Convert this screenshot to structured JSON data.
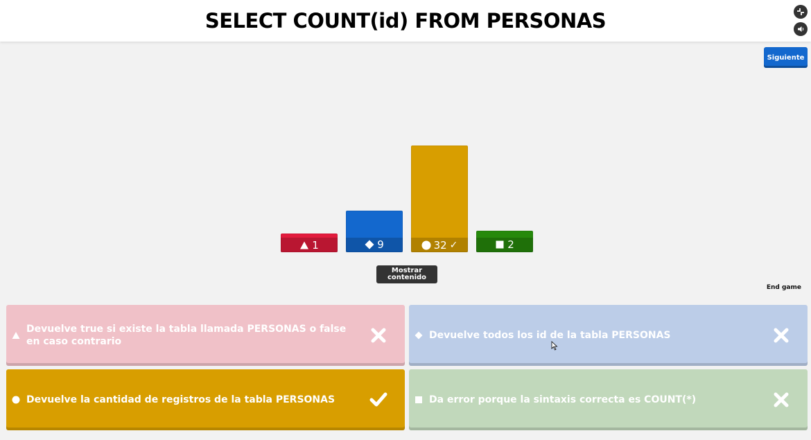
{
  "header": {
    "question": "SELECT COUNT(id) FROM PERSONAS",
    "fullscreen_icon": "fullscreen-icon",
    "sound_icon": "speaker-icon"
  },
  "controls": {
    "next_label": "Siguiente",
    "show_content_label": "Mostrar contenido",
    "end_game_label": "End game"
  },
  "colors": {
    "red": "#e21b3c",
    "blue": "#1368ce",
    "gold": "#d89e00",
    "green": "#26890c",
    "red_faded": "#f0c1c8",
    "blue_faded": "#bccde8",
    "green_faded": "#c1d8bb"
  },
  "chart_data": {
    "type": "bar",
    "categories": [
      "triangle",
      "diamond",
      "circle",
      "square"
    ],
    "values": [
      1,
      9,
      32,
      2
    ],
    "value_labels": [
      "1",
      "9",
      "32",
      "2"
    ],
    "correct": [
      false,
      false,
      true,
      false
    ],
    "colors": [
      "#e21b3c",
      "#1368ce",
      "#d89e00",
      "#26890c"
    ]
  },
  "answers": [
    {
      "shape": "triangle",
      "text": "Devuelve true si existe la tabla llamada PERSONAS o false en caso contrario",
      "correct": false
    },
    {
      "shape": "diamond",
      "text": "Devuelve todos los id de la tabla PERSONAS",
      "correct": false
    },
    {
      "shape": "circle",
      "text": "Devuelve la cantidad de registros de la tabla PERSONAS",
      "correct": true
    },
    {
      "shape": "square",
      "text": "Da error porque la sintaxis correcta es COUNT(*)",
      "correct": false
    }
  ]
}
